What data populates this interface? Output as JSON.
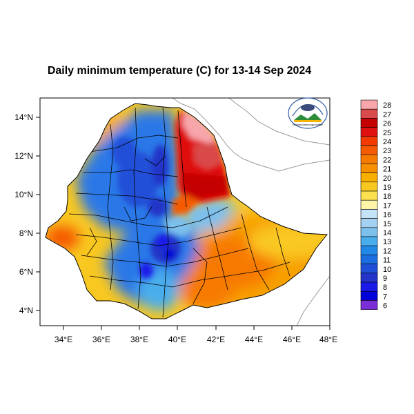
{
  "title": "Daily minimum temperature (C) for 13-14 Sep 2024",
  "map": {
    "x_axis_labels": [
      "34°E",
      "36°E",
      "38°E",
      "40°E",
      "42°E",
      "44°E",
      "46°E",
      "48°E"
    ],
    "y_axis_labels": [
      "14°N",
      "12°N",
      "10°N",
      "8°N",
      "6°N",
      "4°N"
    ],
    "lon_range": [
      33,
      48.2
    ],
    "lat_range": [
      3.2,
      15
    ]
  },
  "colorbar": {
    "labels": [
      "28",
      "27",
      "26",
      "25",
      "24",
      "23",
      "22",
      "21",
      "20",
      "19",
      "18",
      "17",
      "16",
      "15",
      "14",
      "13",
      "12",
      "11",
      "10",
      "9",
      "8",
      "7",
      "6"
    ],
    "colors": [
      "#f7a6ac",
      "#d94a4a",
      "#c40000",
      "#e01010",
      "#f33a00",
      "#f55a00",
      "#f77a00",
      "#f79000",
      "#f8b000",
      "#f9c820",
      "#fbe050",
      "#fdf4a8",
      "#c5e3f7",
      "#a4d1f1",
      "#7cc0ee",
      "#49adec",
      "#2288e8",
      "#1c6ee0",
      "#2050d8",
      "#2434c8",
      "#1a1ae8",
      "#0000d8",
      "#7a2ed8"
    ]
  },
  "logo": {
    "text": "Ethiopian Meteorology Institute"
  }
}
